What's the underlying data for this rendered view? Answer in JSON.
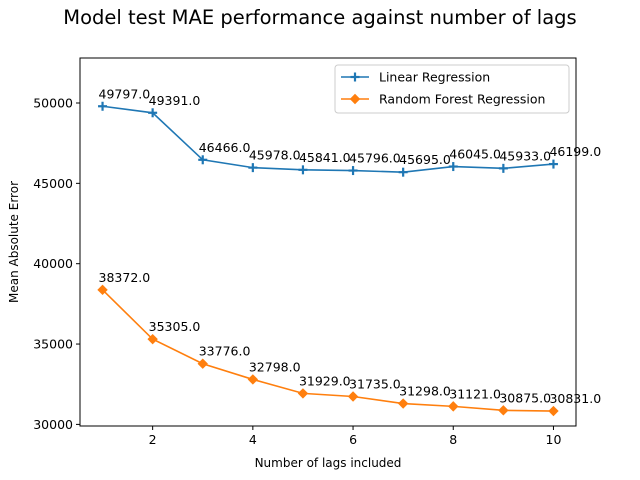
{
  "chart_data": {
    "type": "line",
    "title": "Model test MAE performance against number of lags",
    "xlabel": "Number of lags included",
    "ylabel": "Mean Absolute Error",
    "x": [
      1,
      2,
      3,
      4,
      5,
      6,
      7,
      8,
      9,
      10
    ],
    "xticks": [
      2,
      4,
      6,
      8,
      10
    ],
    "yticks": [
      30000,
      35000,
      40000,
      45000,
      50000
    ],
    "xlim": [
      0.55,
      10.45
    ],
    "ylim": [
      29900,
      52800
    ],
    "grid": false,
    "legend_position": "upper right",
    "series": [
      {
        "name": "Linear Regression",
        "color": "#1f77b4",
        "marker": "plus",
        "values": [
          49797,
          49391,
          46466,
          45978,
          45841,
          45796,
          45695,
          46045,
          45933,
          46199
        ],
        "labels": [
          "49797.0",
          "49391.0",
          "46466.0",
          "45978.0",
          "45841.0",
          "45796.0",
          "45695.0",
          "46045.0",
          "45933.0",
          "46199.0"
        ]
      },
      {
        "name": "Random Forest Regression",
        "color": "#ff7f0e",
        "marker": "diamond",
        "values": [
          38372,
          35305,
          33776,
          32798,
          31929,
          31735,
          31298,
          31121,
          30875,
          30831
        ],
        "labels": [
          "38372.0",
          "35305.0",
          "33776.0",
          "32798.0",
          "31929.0",
          "31735.0",
          "31298.0",
          "31121.0",
          "30875.0",
          "30831.0"
        ]
      }
    ]
  }
}
